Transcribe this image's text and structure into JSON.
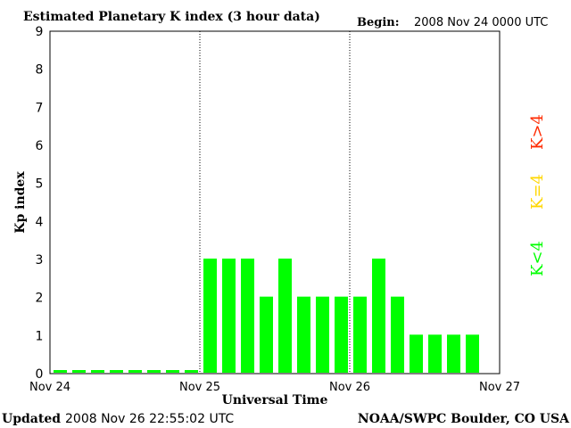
{
  "header": {
    "title": "Estimated Planetary K index (3 hour data)",
    "begin_label": "Begin:",
    "begin_value": "2008 Nov 24 0000 UTC"
  },
  "footer": {
    "updated_label": "Updated",
    "updated_value": "2008 Nov 26 22:55:02 UTC",
    "source": "NOAA/SWPC Boulder, CO USA"
  },
  "legend": [
    {
      "label": "K<4",
      "color": "#00ff00"
    },
    {
      "label": "K=4",
      "color": "#ffd700"
    },
    {
      "label": "K>4",
      "color": "#ff2a00"
    }
  ],
  "chart_data": {
    "type": "bar",
    "title": "Estimated Planetary K index (3 hour data)",
    "xlabel": "Universal Time",
    "ylabel": "Kp index",
    "ylim": [
      0,
      9
    ],
    "yticks": [
      0,
      1,
      2,
      3,
      4,
      5,
      6,
      7,
      8,
      9
    ],
    "xticks": [
      "Nov 24",
      "Nov 25",
      "Nov 26",
      "Nov 27"
    ],
    "grid": "vertical dotted lines at day boundaries",
    "bar_color": "#00ff00",
    "interval_hours": 3,
    "values": [
      0,
      0,
      0,
      0,
      0,
      0,
      0,
      0,
      3,
      3,
      3,
      2,
      3,
      2,
      2,
      2,
      2,
      3,
      2,
      1,
      1,
      1,
      1
    ]
  }
}
